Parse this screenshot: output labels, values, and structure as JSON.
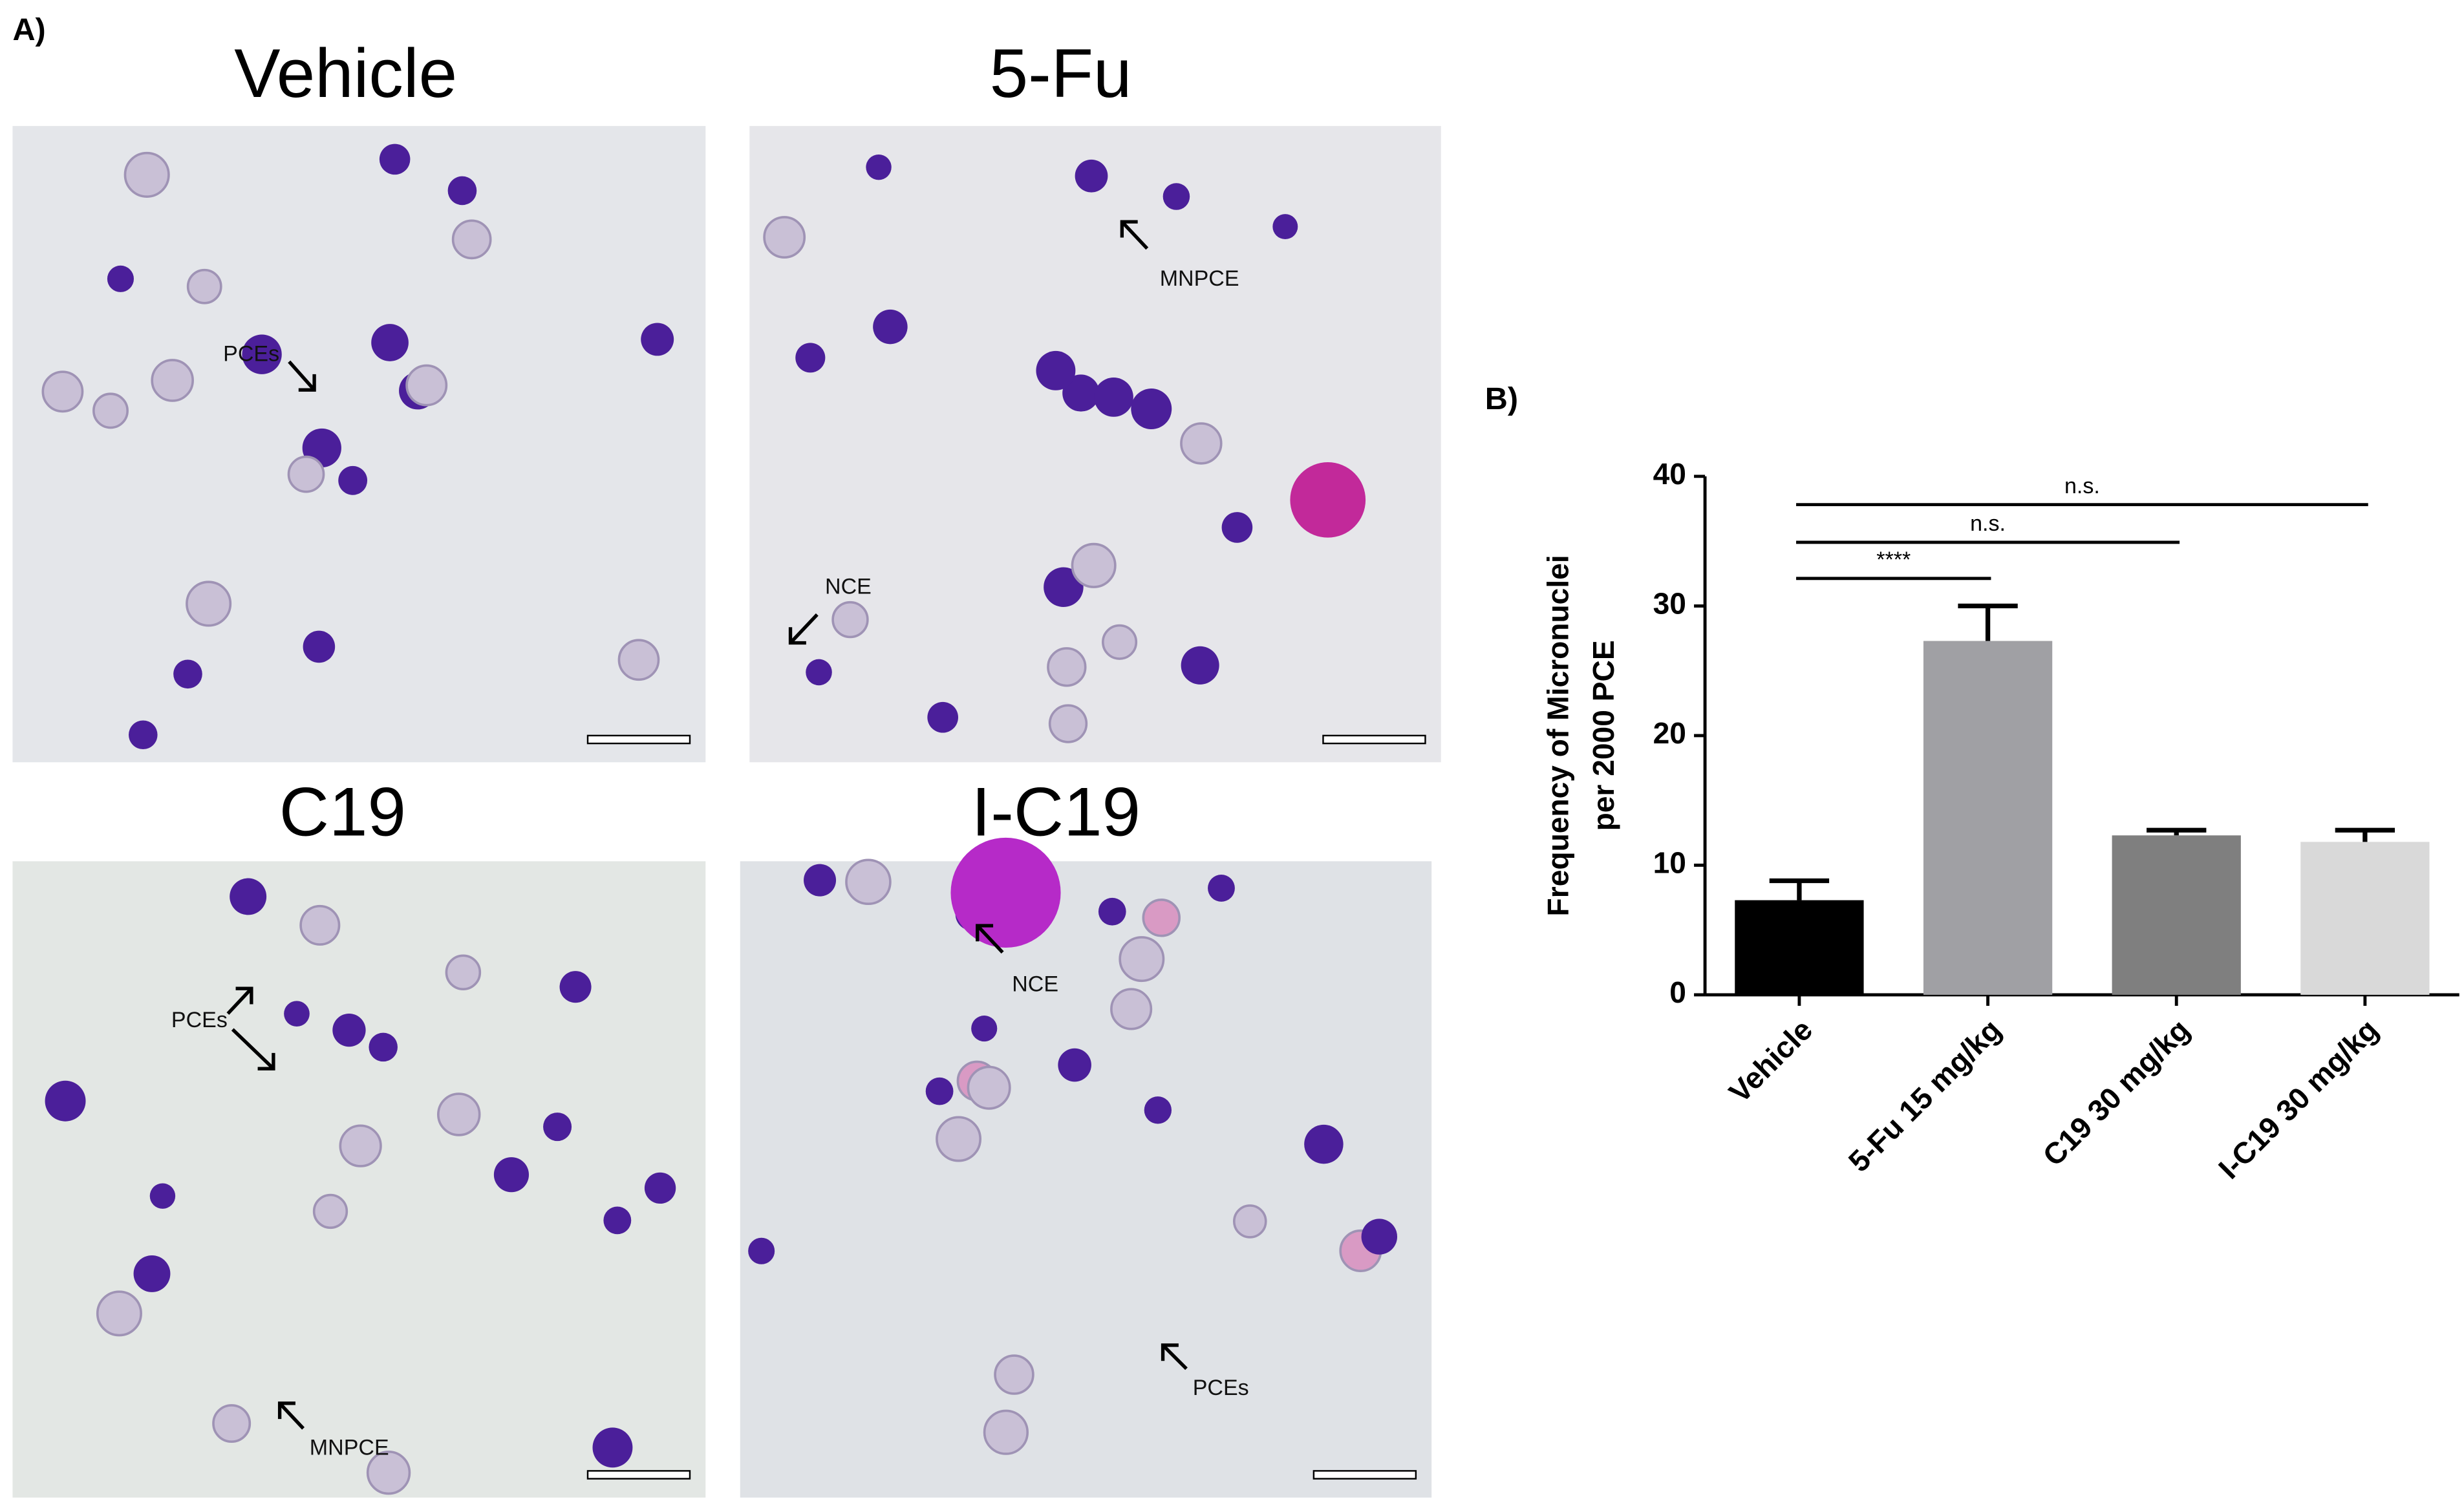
{
  "panel_a": {
    "label": "A)",
    "images": [
      {
        "title": "Vehicle",
        "annotations": [
          "PCEs"
        ]
      },
      {
        "title": "5-Fu",
        "annotations": [
          "MNPCE",
          "NCE"
        ]
      },
      {
        "title": "C19",
        "annotations": [
          "PCEs",
          "MNPCE"
        ]
      },
      {
        "title": "I-C19",
        "annotations": [
          "NCE",
          "PCEs"
        ]
      }
    ]
  },
  "chart_data": {
    "type": "bar",
    "panel_label": "B)",
    "y_label": [
      "Frequency of Micronuclei",
      "per 2000 PCE"
    ],
    "categories": [
      "Vehicle",
      "5-Fu 15 mg/kg",
      "C19 30 mg/kg",
      "I-C19 30 mg/kg"
    ],
    "values": [
      7.3,
      27.3,
      12.3,
      11.8
    ],
    "errors": [
      1.5,
      2.7,
      0.4,
      0.9
    ],
    "colors": [
      "#000000",
      "#a0a0a4",
      "#7f7f7f",
      "#d9d9d9"
    ],
    "ylim": [
      0,
      40
    ],
    "yticks": [
      0,
      10,
      20,
      30,
      40
    ],
    "significance": [
      {
        "groups": [
          0,
          1
        ],
        "label": "****"
      },
      {
        "groups": [
          0,
          2
        ],
        "label": "n.s."
      },
      {
        "groups": [
          0,
          3
        ],
        "label": "n.s."
      }
    ]
  }
}
